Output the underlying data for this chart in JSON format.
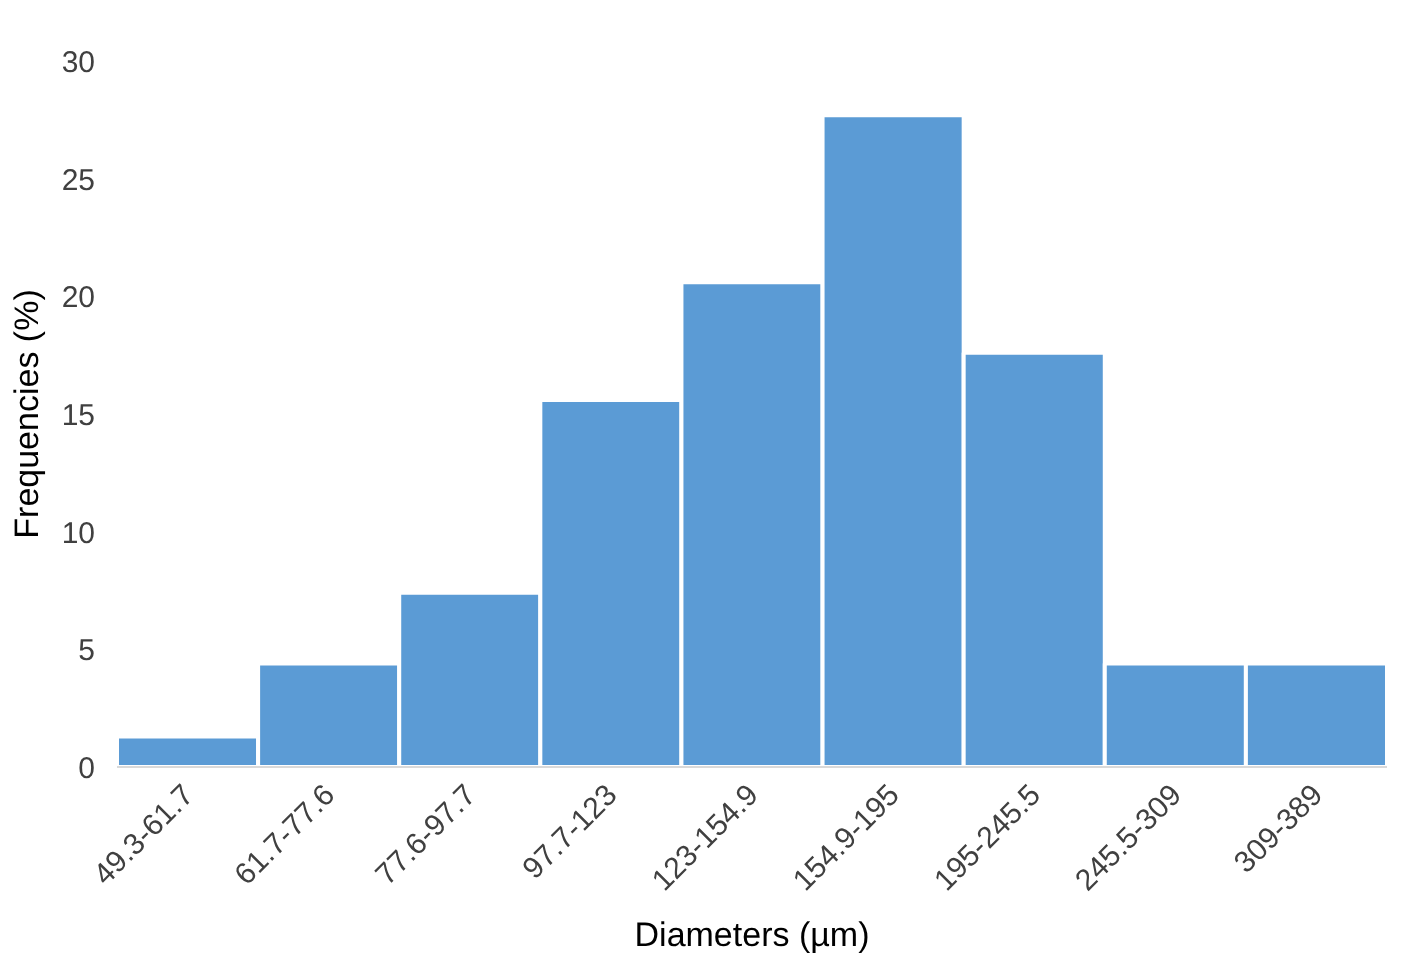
{
  "chart_data": {
    "type": "bar",
    "xlabel": "Diameters (µm)",
    "ylabel": "Frequencies (%)",
    "categories": [
      "49.3-61.7",
      "61.7-77.6",
      "77.6-97.7",
      "97.7-123",
      "123-154.9",
      "154.9-195",
      "195-245.5",
      "245.5-309",
      "309-389"
    ],
    "values": [
      1.3,
      4.4,
      7.4,
      15.6,
      20.6,
      27.7,
      17.6,
      4.4,
      4.4
    ],
    "color": "#5b9bd5",
    "ylim": [
      0,
      30
    ],
    "yticks": [
      0,
      5,
      10,
      15,
      20,
      25,
      30
    ],
    "grid": false
  }
}
